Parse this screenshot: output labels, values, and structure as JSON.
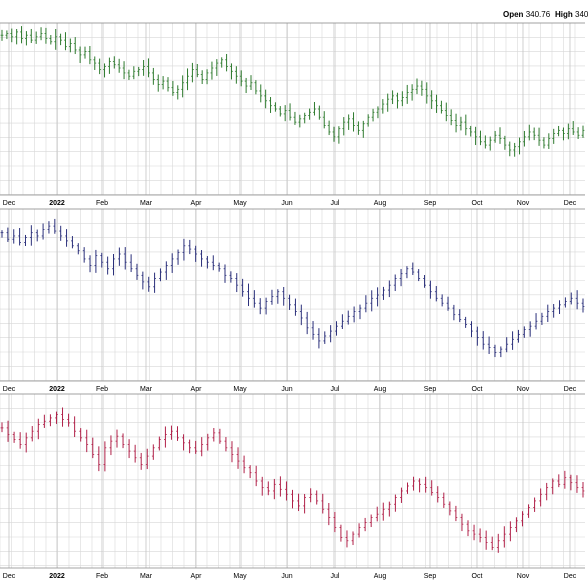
{
  "header": {
    "open_label": "Open",
    "open_value": "340.76",
    "high_label": "High",
    "high_value": "340"
  },
  "colors": {
    "panel1": "#2e7a2e",
    "panel2": "#2a2f7a",
    "panel3": "#b02048",
    "grid": "#d8d8d8",
    "border": "#888888"
  },
  "chart_data": [
    {
      "type": "ohlc",
      "color_key": "panel1",
      "x_labels": [
        "Dec",
        "2022",
        "Feb",
        "Mar",
        "Apr",
        "May",
        "Jun",
        "Jul",
        "Aug",
        "Sep",
        "Oct",
        "Nov",
        "Dec"
      ],
      "bold_labels": [
        "2022"
      ],
      "ylim": [
        0,
        100
      ],
      "closes": [
        95,
        96,
        94,
        97,
        93,
        95,
        92,
        94,
        96,
        93,
        91,
        94,
        92,
        88,
        90,
        86,
        83,
        85,
        80,
        78,
        74,
        76,
        79,
        77,
        75,
        72,
        70,
        73,
        74,
        76,
        72,
        68,
        65,
        67,
        63,
        60,
        62,
        66,
        70,
        74,
        71,
        68,
        72,
        75,
        78,
        80,
        76,
        73,
        70,
        67,
        64,
        66,
        61,
        58,
        55,
        52,
        50,
        47,
        49,
        45,
        42,
        44,
        46,
        48,
        50,
        45,
        40,
        36,
        33,
        38,
        42,
        44,
        40,
        37,
        41,
        45,
        48,
        50,
        53,
        56,
        58,
        55,
        57,
        60,
        62,
        64,
        62,
        58,
        55,
        52,
        49,
        46,
        43,
        40,
        42,
        38,
        36,
        33,
        30,
        28,
        31,
        34,
        32,
        28,
        25,
        27,
        30,
        33,
        36,
        34,
        31,
        28,
        32,
        35,
        37,
        35,
        38,
        36,
        34,
        37
      ]
    },
    {
      "type": "ohlc",
      "color_key": "panel2",
      "x_labels": [
        "Dec",
        "2022",
        "Feb",
        "Mar",
        "Apr",
        "May",
        "Jun",
        "Jul",
        "Aug",
        "Sep",
        "Oct",
        "Nov",
        "Dec"
      ],
      "bold_labels": [
        "2022"
      ],
      "ylim": [
        0,
        100
      ],
      "closes": [
        88,
        84,
        86,
        82,
        85,
        88,
        86,
        90,
        92,
        89,
        86,
        83,
        80,
        77,
        72,
        68,
        74,
        70,
        66,
        72,
        75,
        70,
        66,
        62,
        58,
        55,
        60,
        64,
        68,
        72,
        76,
        80,
        78,
        75,
        72,
        70,
        68,
        66,
        62,
        60,
        56,
        52,
        48,
        45,
        42,
        46,
        49,
        52,
        48,
        44,
        40,
        36,
        30,
        26,
        22,
        25,
        28,
        31,
        34,
        37,
        40,
        42,
        45,
        48,
        50,
        53,
        56,
        60,
        63,
        66,
        64,
        60,
        56,
        52,
        48,
        45,
        42,
        38,
        35,
        32,
        28,
        24,
        20,
        18,
        15,
        17,
        20,
        23,
        26,
        29,
        31,
        34,
        37,
        40,
        42,
        44,
        46,
        48,
        45,
        43
      ]
    },
    {
      "type": "ohlc",
      "color_key": "panel3",
      "x_labels": [
        "Dec",
        "2022",
        "Feb",
        "Mar",
        "Apr",
        "May",
        "Jun",
        "Jul",
        "Aug",
        "Sep",
        "Oct",
        "Nov",
        "Dec"
      ],
      "bold_labels": [
        "2022"
      ],
      "ylim": [
        0,
        100
      ],
      "closes": [
        82,
        78,
        75,
        72,
        76,
        80,
        84,
        86,
        88,
        90,
        87,
        85,
        80,
        76,
        72,
        66,
        60,
        70,
        74,
        77,
        72,
        68,
        64,
        60,
        65,
        70,
        75,
        78,
        80,
        76,
        73,
        70,
        68,
        72,
        76,
        79,
        74,
        70,
        66,
        62,
        58,
        55,
        50,
        46,
        44,
        48,
        45,
        42,
        38,
        35,
        40,
        42,
        38,
        33,
        28,
        22,
        16,
        14,
        18,
        22,
        25,
        28,
        30,
        33,
        36,
        40,
        44,
        47,
        50,
        48,
        46,
        43,
        40,
        36,
        32,
        28,
        24,
        20,
        18,
        16,
        13,
        10,
        14,
        18,
        22,
        26,
        30,
        34,
        38,
        42,
        46,
        50,
        48,
        52,
        49,
        46,
        44
      ]
    }
  ]
}
